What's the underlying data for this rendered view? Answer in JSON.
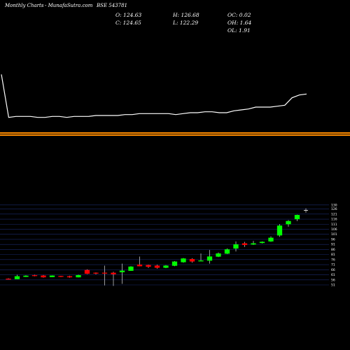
{
  "header": {
    "title": "Monthly Charts",
    "source": "- MunafaSutra.com",
    "symbol": "BSE 543781"
  },
  "ohlc_readout": {
    "open": "O: 124.63",
    "close": "C: 124.65",
    "high": "H: 126.68",
    "low": "L: 122.29",
    "oc": "OC: 0.02",
    "oh": "OH: 1.64",
    "ol": "OL: 1.91"
  },
  "colors": {
    "background": "#000000",
    "up": "#00ff00",
    "down": "#ff0000",
    "line": "#ffffff",
    "separator": "#ff8c00",
    "grid": "#1a2a6c"
  },
  "chart_data": [
    {
      "type": "line",
      "title": "",
      "values": [
        129,
        83,
        84,
        84,
        84,
        83,
        83,
        84,
        84,
        83,
        84,
        84,
        84,
        85,
        85,
        85,
        85,
        86,
        86,
        87,
        87,
        87,
        87,
        87,
        86,
        87,
        88,
        88,
        89,
        89,
        88,
        88,
        90,
        91,
        92,
        94,
        94,
        94,
        95,
        96,
        104,
        107,
        108
      ],
      "ylim": [
        70,
        175
      ]
    },
    {
      "type": "candlestick",
      "title": "",
      "ylim": [
        51,
        134
      ],
      "y_ticks": [
        51,
        56,
        61,
        66,
        71,
        76,
        81,
        86,
        91,
        96,
        101,
        106,
        111,
        116,
        121,
        126,
        130
      ],
      "candles": [
        {
          "o": 57,
          "h": 57.6,
          "l": 56.4,
          "c": 56.8
        },
        {
          "o": 56.8,
          "h": 61,
          "l": 56.6,
          "c": 59.5
        },
        {
          "o": 59,
          "h": 60.5,
          "l": 58.8,
          "c": 60
        },
        {
          "o": 60.5,
          "h": 61,
          "l": 59.5,
          "c": 60
        },
        {
          "o": 60.2,
          "h": 60.8,
          "l": 58.2,
          "c": 58.6
        },
        {
          "o": 58.8,
          "h": 60.4,
          "l": 58.6,
          "c": 60.1
        },
        {
          "o": 59.7,
          "h": 60,
          "l": 58.8,
          "c": 59.2
        },
        {
          "o": 59.5,
          "h": 60.1,
          "l": 58.1,
          "c": 58.6
        },
        {
          "o": 58.6,
          "h": 61,
          "l": 58.4,
          "c": 60.6
        },
        {
          "o": 65.6,
          "h": 66.4,
          "l": 61.6,
          "c": 62.1
        },
        {
          "o": 63,
          "h": 63.4,
          "l": 61.4,
          "c": 62.9
        },
        {
          "o": 63,
          "h": 70,
          "l": 50.5,
          "c": 62.4
        },
        {
          "o": 62.9,
          "h": 64,
          "l": 50,
          "c": 61.6
        },
        {
          "o": 63.6,
          "h": 72,
          "l": 52,
          "c": 65
        },
        {
          "o": 65,
          "h": 69.5,
          "l": 64.8,
          "c": 69
        },
        {
          "o": 71,
          "h": 79,
          "l": 69.4,
          "c": 69.5
        },
        {
          "o": 70.5,
          "h": 71,
          "l": 67.8,
          "c": 69
        },
        {
          "o": 70,
          "h": 71,
          "l": 67,
          "c": 68
        },
        {
          "o": 68,
          "h": 70.5,
          "l": 67.5,
          "c": 70
        },
        {
          "o": 70,
          "h": 74.5,
          "l": 69.5,
          "c": 74
        },
        {
          "o": 73.5,
          "h": 77.5,
          "l": 73,
          "c": 77
        },
        {
          "o": 76.5,
          "h": 77.4,
          "l": 73,
          "c": 74.2
        },
        {
          "o": 74.8,
          "h": 82,
          "l": 74.5,
          "c": 75
        },
        {
          "o": 75,
          "h": 85.5,
          "l": 72,
          "c": 79
        },
        {
          "o": 79,
          "h": 83,
          "l": 78.5,
          "c": 82
        },
        {
          "o": 82,
          "h": 87,
          "l": 81.5,
          "c": 86
        },
        {
          "o": 87,
          "h": 94,
          "l": 84,
          "c": 91
        },
        {
          "o": 92,
          "h": 93.5,
          "l": 88.5,
          "c": 90.5
        },
        {
          "o": 91,
          "h": 94.5,
          "l": 90.5,
          "c": 92
        },
        {
          "o": 92.5,
          "h": 94,
          "l": 92,
          "c": 93.5
        },
        {
          "o": 94,
          "h": 99,
          "l": 93.5,
          "c": 97.5
        },
        {
          "o": 100,
          "h": 111,
          "l": 98.5,
          "c": 109.5
        },
        {
          "o": 111,
          "h": 115,
          "l": 108.5,
          "c": 114
        },
        {
          "o": 116,
          "h": 120.4,
          "l": 114,
          "c": 120
        },
        {
          "o": 124.63,
          "h": 126.68,
          "l": 122.29,
          "c": 124.65
        }
      ]
    }
  ]
}
